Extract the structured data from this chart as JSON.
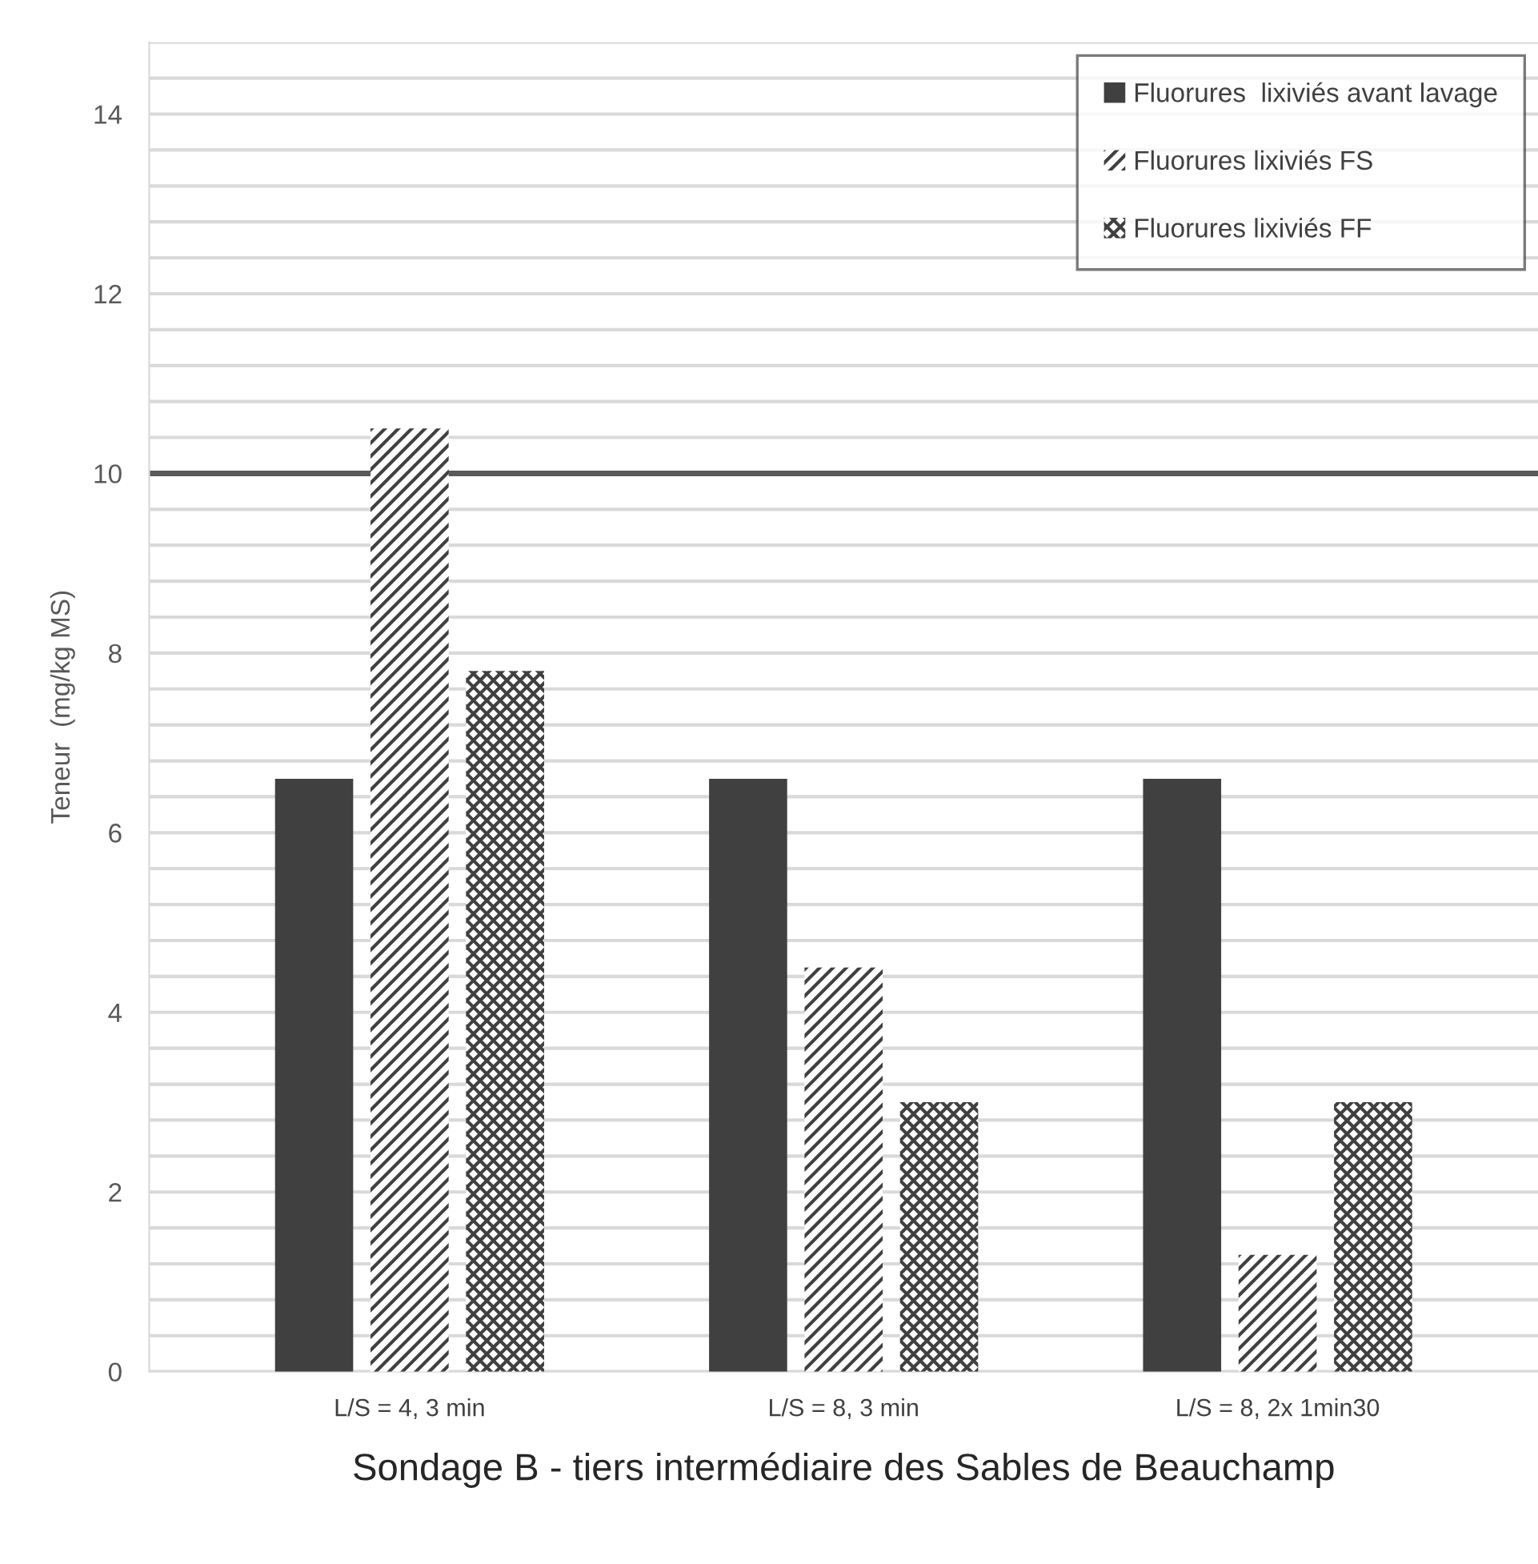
{
  "chart_data": {
    "type": "bar",
    "xlabel": "Sondage B - tiers intermédiaire des Sables de Beauchamp",
    "ylabel": "Teneur  (mg/kg MS)",
    "categories": [
      "L/S = 4, 3 min",
      "L/S = 8, 3 min",
      "L/S = 8, 2x 1min30"
    ],
    "series": [
      {
        "name": "Fluorures  lixiviés avant lavage",
        "color": "#404040",
        "values": [
          6.6,
          6.6,
          6.6
        ]
      },
      {
        "name": "Fluorures lixiviés FS",
        "color": "#404040",
        "values": [
          10.5,
          4.5,
          1.3
        ]
      },
      {
        "name": "Fluorures lixiviés FF",
        "color": "#404040",
        "values": [
          7.8,
          3.0,
          3.0
        ]
      }
    ],
    "ylim": [
      0,
      14.8
    ],
    "yticks": [
      0,
      {
        "value": 0.4,
        "label": null
      },
      {
        "value": 0.8,
        "label": null
      },
      {
        "value": 1.2,
        "label": null
      },
      {
        "value": 1.6,
        "label": null
      },
      2,
      {
        "value": 2.4,
        "label": null
      },
      {
        "value": 2.8,
        "label": null
      },
      {
        "value": 3.2,
        "label": null
      },
      {
        "value": 3.6,
        "label": null
      },
      4,
      {
        "value": 4.4,
        "label": null
      },
      {
        "value": 4.8,
        "label": null
      },
      {
        "value": 5.2,
        "label": null
      },
      {
        "value": 5.6,
        "label": null
      },
      6,
      {
        "value": 6.4,
        "label": null
      },
      {
        "value": 6.8,
        "label": null
      },
      {
        "value": 7.2,
        "label": null
      },
      {
        "value": 7.6,
        "label": null
      },
      8,
      {
        "value": 8.4,
        "label": null
      },
      {
        "value": 8.8,
        "label": null
      },
      {
        "value": 9.2,
        "label": null
      },
      {
        "value": 9.6,
        "label": null
      },
      10,
      {
        "value": 10.4,
        "label": null
      },
      {
        "value": 10.8,
        "label": null
      },
      {
        "value": 11.2,
        "label": null
      },
      {
        "value": 11.6,
        "label": null
      },
      12,
      {
        "value": 12.4,
        "label": null
      },
      {
        "value": 12.8,
        "label": null
      },
      {
        "value": 13.2,
        "label": null
      },
      {
        "value": 13.6,
        "label": null
      },
      14,
      {
        "value": 14.4,
        "label": null
      },
      {
        "value": 14.8,
        "label": null
      }
    ],
    "ref_lines": [
      {
        "axis": "y",
        "value": 10,
        "label": null,
        "color": "#595959"
      }
    ],
    "grid": "y",
    "legend": "top right"
  }
}
